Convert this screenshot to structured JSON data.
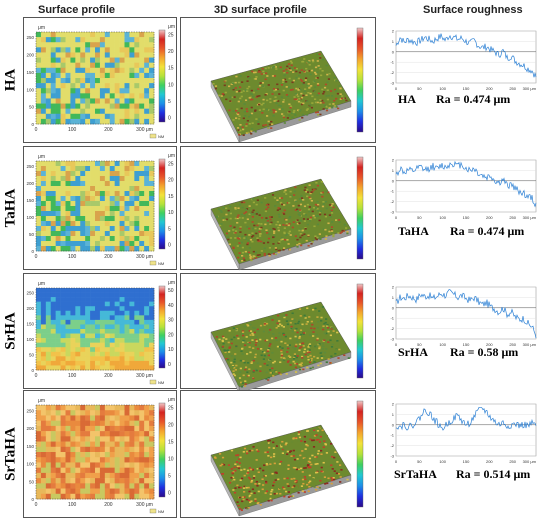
{
  "headers": {
    "surface_profile": "Surface profile",
    "surface_3d": "3D surface profile",
    "roughness": "Surface roughness"
  },
  "colorbar_unit": "μm",
  "legend_nm": "NM",
  "xaxis_unit_label": "300 μm",
  "rows": [
    {
      "label": "HA",
      "ra_sample": "HA",
      "ra_value": "Ra = 0.474 μm",
      "profile": {
        "x_ticks": [
          "0",
          "100",
          "200",
          "300 μm"
        ],
        "y_ticks": [
          "0",
          "50",
          "100",
          "150",
          "200",
          "250"
        ],
        "cbar_ticks": [
          "0",
          "5",
          "10",
          "15",
          "20",
          "25"
        ],
        "palette": [
          "#e2dd6a",
          "#e8c85a",
          "#d9a34c",
          "#a8c96a",
          "#5bb3d6",
          "#3e9fd1",
          "#41b85a"
        ]
      },
      "roughness": {
        "y_ticks": [
          "2",
          "1",
          "0",
          "-1",
          "-2",
          "-3"
        ],
        "trace": [
          0.6,
          1.4,
          0.9,
          1.2,
          1.0,
          0.9,
          1.1,
          1.4,
          1.2,
          1.0,
          1.3,
          1.5,
          1.1,
          1.6,
          1.4,
          1.2,
          1.3,
          1.0,
          0.8,
          1.1,
          0.6,
          0.4,
          0.5,
          0.2,
          0.0,
          -0.3,
          0.1,
          -0.6,
          -0.4,
          -0.9,
          -1.1,
          -1.3,
          -1.6,
          -1.8,
          -2.4
        ]
      }
    },
    {
      "label": "TaHA",
      "ra_sample": "TaHA",
      "ra_value": "Ra = 0.474 μm",
      "profile": {
        "x_ticks": [
          "0",
          "100",
          "200",
          "300 μm"
        ],
        "y_ticks": [
          "0",
          "50",
          "100",
          "150",
          "200",
          "250"
        ],
        "cbar_ticks": [
          "0",
          "5",
          "10",
          "15",
          "20",
          "25"
        ],
        "palette": [
          "#e2dd6a",
          "#e8c85a",
          "#d9a34c",
          "#a8c96a",
          "#5bb3d6",
          "#3e9fd1",
          "#41b85a"
        ]
      },
      "roughness": {
        "y_ticks": [
          "2",
          "1",
          "0",
          "-1",
          "-2",
          "-3"
        ],
        "trace": [
          0.5,
          1.2,
          0.8,
          1.0,
          0.9,
          1.1,
          1.3,
          1.0,
          1.2,
          1.4,
          1.1,
          1.5,
          1.3,
          1.6,
          1.7,
          1.4,
          1.6,
          1.2,
          1.0,
          1.2,
          0.7,
          0.5,
          0.3,
          0.5,
          0.0,
          -0.2,
          0.1,
          -0.5,
          -0.3,
          -0.8,
          -1.0,
          -1.2,
          -1.5,
          -1.7,
          -2.3
        ]
      }
    },
    {
      "label": "SrHA",
      "ra_sample": "SrHA",
      "ra_value": "Ra = 0.58 μm",
      "profile": {
        "x_ticks": [
          "0",
          "100",
          "200",
          "300 μm"
        ],
        "y_ticks": [
          "0",
          "50",
          "100",
          "150",
          "200",
          "250"
        ],
        "cbar_ticks": [
          "0",
          "10",
          "20",
          "30",
          "40",
          "50"
        ],
        "palette": [
          "#f0a83a",
          "#f2c24a",
          "#e9d35a",
          "#c9d85e",
          "#7ccf8a",
          "#45b9d8",
          "#2f6fd0"
        ]
      },
      "roughness": {
        "y_ticks": [
          "2",
          "1",
          "0",
          "-1",
          "-2",
          "-3"
        ],
        "trace": [
          0.4,
          1.0,
          0.9,
          1.2,
          1.0,
          0.8,
          1.3,
          1.1,
          1.2,
          0.9,
          1.1,
          1.4,
          1.2,
          1.5,
          1.3,
          1.0,
          1.2,
          0.9,
          0.7,
          1.0,
          0.6,
          0.3,
          0.5,
          0.1,
          -0.1,
          -0.4,
          0.0,
          -0.6,
          -0.4,
          -0.9,
          -1.1,
          -1.0,
          -1.5,
          -1.8,
          -2.6
        ]
      }
    },
    {
      "label": "SrTaHA",
      "ra_sample": "SrTaHA",
      "ra_value": "Ra = 0.514 μm",
      "profile": {
        "x_ticks": [
          "0",
          "100",
          "200",
          "300 μm"
        ],
        "y_ticks": [
          "0",
          "50",
          "100",
          "150",
          "200",
          "250"
        ],
        "cbar_ticks": [
          "0",
          "5",
          "10",
          "15",
          "20",
          "25"
        ],
        "palette": [
          "#f0a04a",
          "#e98a3e",
          "#e8b85a",
          "#d96a35",
          "#f3c46a",
          "#c9c860",
          "#e47b3e"
        ]
      },
      "roughness": {
        "y_ticks": [
          "2",
          "1",
          "0",
          "-1",
          "-2",
          "-3"
        ],
        "trace": [
          0.0,
          -0.2,
          0.1,
          -0.3,
          0.0,
          0.3,
          0.8,
          1.4,
          1.2,
          0.6,
          0.2,
          -0.4,
          -0.1,
          0.3,
          0.6,
          0.9,
          0.4,
          0.0,
          0.2,
          0.8,
          1.3,
          1.6,
          1.2,
          0.7,
          0.3,
          0.0,
          0.2,
          -0.1,
          0.0,
          0.1,
          -0.1,
          0.0,
          -0.1,
          0.1,
          0.0
        ]
      }
    }
  ]
}
